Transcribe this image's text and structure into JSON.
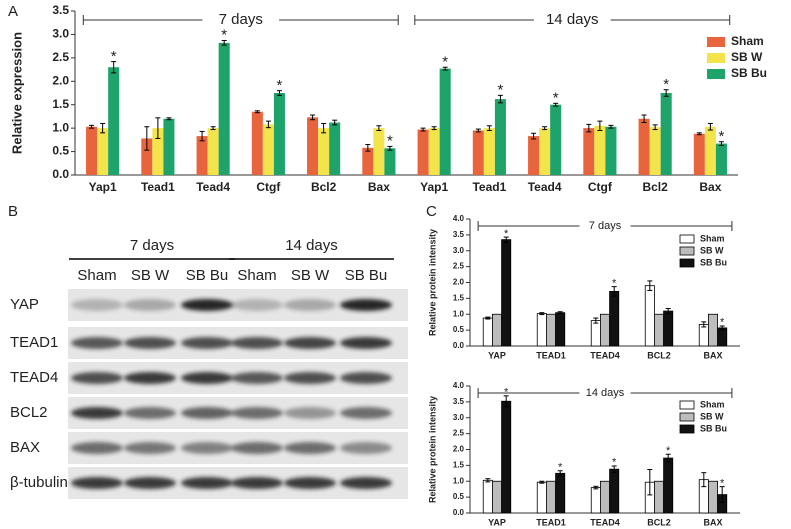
{
  "chart_data": [
    {
      "type": "bar",
      "panel": "A",
      "ylabel": "Relative expression",
      "categories": [
        "Yap1",
        "Tead1",
        "Tead4",
        "Ctgf",
        "Bcl2",
        "Bax",
        "Yap1",
        "Tead1",
        "Tead4",
        "Ctgf",
        "Bcl2",
        "Bax"
      ],
      "group_labels": [
        "7 days",
        "14 days"
      ],
      "series": [
        {
          "name": "Sham",
          "color": "#e8643c",
          "values": [
            1.03,
            0.78,
            0.83,
            1.35,
            1.23,
            0.58,
            0.97,
            0.95,
            0.83,
            1.0,
            1.2,
            0.88
          ],
          "errors": [
            0.03,
            0.25,
            0.1,
            0.02,
            0.05,
            0.07,
            0.03,
            0.03,
            0.06,
            0.08,
            0.08,
            0.02
          ]
        },
        {
          "name": "SB W",
          "color": "#f2e44a",
          "values": [
            1.0,
            1.0,
            1.0,
            1.08,
            1.0,
            1.0,
            1.0,
            1.0,
            1.0,
            1.05,
            1.02,
            1.03
          ],
          "errors": [
            0.1,
            0.22,
            0.03,
            0.07,
            0.1,
            0.05,
            0.03,
            0.05,
            0.03,
            0.1,
            0.05,
            0.07
          ]
        },
        {
          "name": "SB Bu",
          "color": "#1ea36a",
          "values": [
            2.3,
            1.2,
            2.82,
            1.75,
            1.12,
            0.57,
            2.27,
            1.62,
            1.5,
            1.03,
            1.75,
            0.67
          ],
          "errors": [
            0.12,
            0.02,
            0.05,
            0.05,
            0.05,
            0.04,
            0.03,
            0.08,
            0.03,
            0.03,
            0.07,
            0.04
          ],
          "stars": [
            "*",
            null,
            "*",
            "*",
            null,
            "*",
            "*",
            "*",
            "*",
            null,
            "*",
            "*"
          ]
        }
      ],
      "ylim": [
        0,
        3.5
      ],
      "yticks": [
        {
          "value": 0,
          "label": "0.0"
        },
        {
          "value": 0.5,
          "label": "0.5"
        },
        {
          "value": 1,
          "label": "1.0"
        },
        {
          "value": 1.5,
          "label": "1.5"
        },
        {
          "value": 2,
          "label": "2.0"
        },
        {
          "value": 2.5,
          "label": "2.5"
        },
        {
          "value": 3,
          "label": "3.0"
        },
        {
          "value": 3.5,
          "label": "3.5"
        }
      ],
      "legend": "right"
    },
    {
      "type": "blot",
      "panel": "B",
      "group_labels": [
        "7 days",
        "14 days"
      ],
      "lanes": [
        "Sham",
        "SB W",
        "SB Bu",
        "Sham",
        "SB W",
        "SB Bu"
      ],
      "rows": [
        "YAP",
        "TEAD1",
        "TEAD4",
        "BCL2",
        "BAX",
        "β-tubulin"
      ]
    },
    {
      "type": "bar",
      "panel": "C",
      "ylabel": "Relative protein intensity",
      "categories": [
        "YAP",
        "TEAD1",
        "TEAD4",
        "BCL2",
        "BAX"
      ],
      "group_labels": [
        "7 days"
      ],
      "series": [
        {
          "name": "Sham",
          "color": "#ffffff",
          "values": [
            0.88,
            1.02,
            0.8,
            1.9,
            0.68
          ],
          "errors": [
            0.03,
            0.03,
            0.08,
            0.15,
            0.08
          ]
        },
        {
          "name": "SB W",
          "color": "#bdbdbd",
          "values": [
            1,
            1,
            1,
            1,
            1
          ]
        },
        {
          "name": "SB Bu",
          "color": "#111111",
          "values": [
            3.35,
            1.05,
            1.72,
            1.1,
            0.57
          ],
          "errors": [
            0.08,
            0.03,
            0.15,
            0.08,
            0.06
          ],
          "stars": [
            "*",
            null,
            "*",
            null,
            "*"
          ]
        }
      ],
      "ylim": [
        0,
        4
      ],
      "yticks": [
        {
          "value": 0,
          "label": "0.0"
        },
        {
          "value": 0.5,
          "label": "0.5"
        },
        {
          "value": 1,
          "label": "1.0"
        },
        {
          "value": 1.5,
          "label": "1.5"
        },
        {
          "value": 2,
          "label": "2.0"
        },
        {
          "value": 2.5,
          "label": "2.5"
        },
        {
          "value": 3,
          "label": "3.0"
        },
        {
          "value": 3.5,
          "label": "3.5"
        },
        {
          "value": 4,
          "label": "4.0"
        }
      ],
      "legend": "upper right"
    },
    {
      "type": "bar",
      "ylabel": "Relative protein intensity",
      "categories": [
        "YAP",
        "TEAD1",
        "TEAD4",
        "BCL2",
        "BAX"
      ],
      "group_labels": [
        "14 days"
      ],
      "series": [
        {
          "name": "Sham",
          "color": "#ffffff",
          "values": [
            1.03,
            0.97,
            0.8,
            0.97,
            1.05
          ],
          "errors": [
            0.05,
            0.03,
            0.04,
            0.4,
            0.22
          ]
        },
        {
          "name": "SB W",
          "color": "#bdbdbd",
          "values": [
            1,
            1,
            1,
            1,
            1
          ]
        },
        {
          "name": "SB Bu",
          "color": "#111111",
          "values": [
            3.52,
            1.25,
            1.38,
            1.73,
            0.58
          ],
          "errors": [
            0.17,
            0.08,
            0.1,
            0.12,
            0.25
          ],
          "stars": [
            "*",
            "*",
            "*",
            "*",
            "*"
          ]
        }
      ],
      "ylim": [
        0,
        4
      ],
      "yticks": [
        {
          "value": 0,
          "label": "0.0"
        },
        {
          "value": 0.5,
          "label": "0.5"
        },
        {
          "value": 1,
          "label": "1.0"
        },
        {
          "value": 1.5,
          "label": "1.5"
        },
        {
          "value": 2,
          "label": "2.0"
        },
        {
          "value": 2.5,
          "label": "2.5"
        },
        {
          "value": 3,
          "label": "3.0"
        },
        {
          "value": 3.5,
          "label": "3.5"
        },
        {
          "value": 4,
          "label": "4.0"
        }
      ],
      "legend": "upper right"
    }
  ]
}
